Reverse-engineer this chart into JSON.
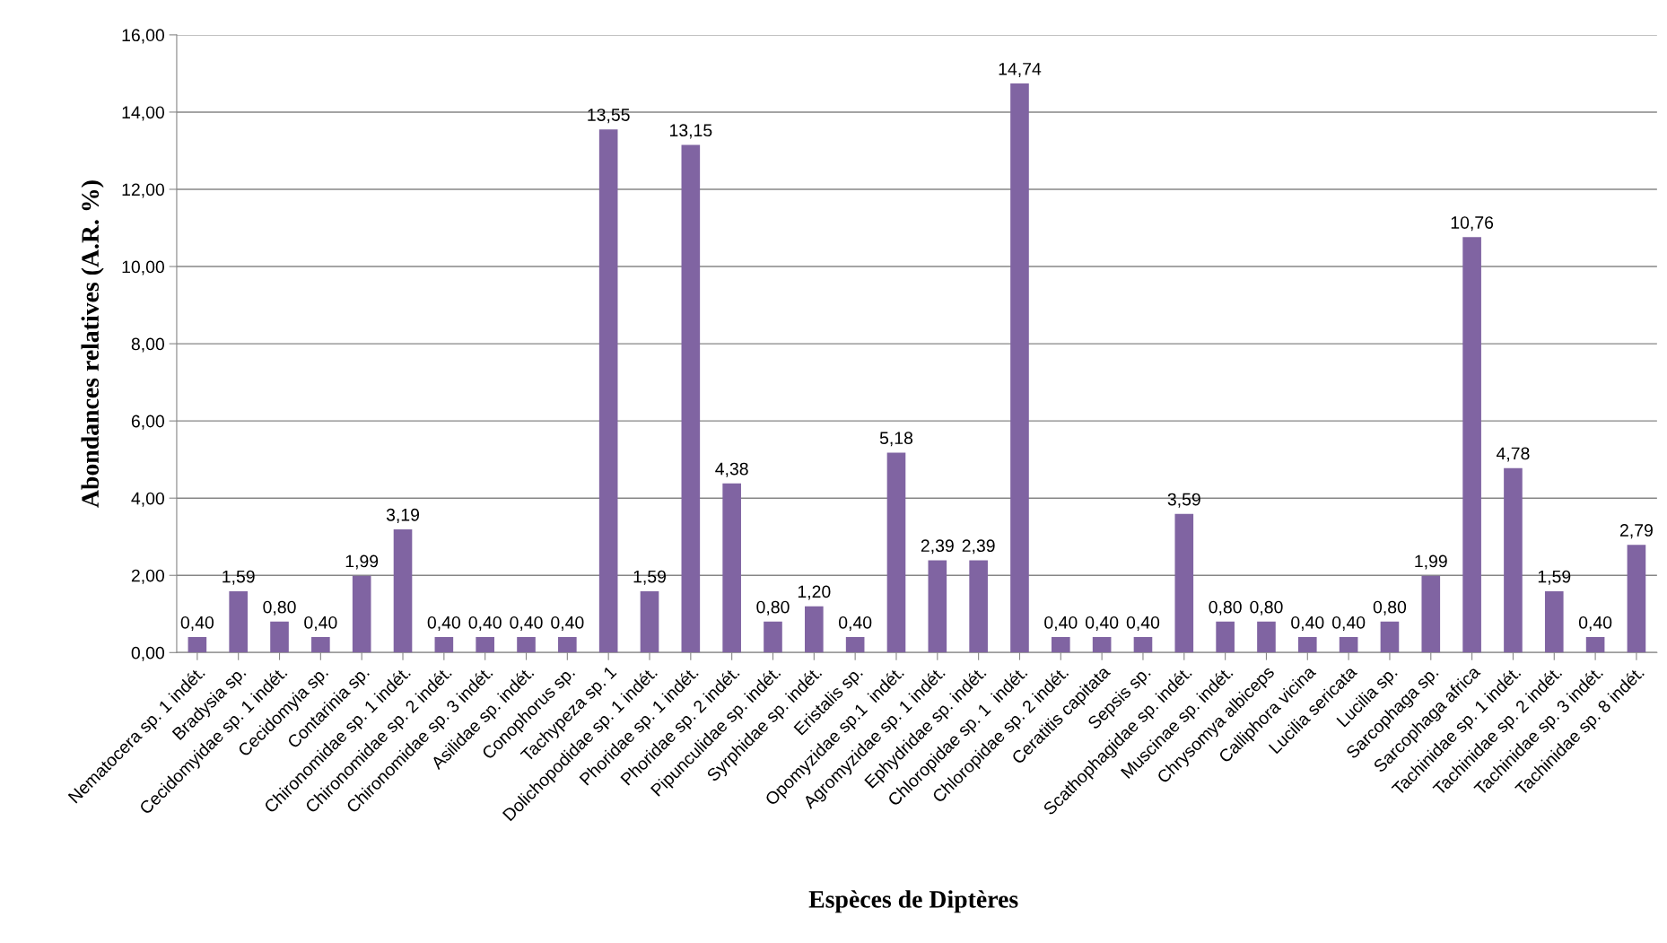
{
  "chart_data": {
    "type": "bar",
    "xlabel": "Espèces de Diptères",
    "ylabel": "Abondances relatives (A.R. %)",
    "categories": [
      "Nematocera sp. 1 indét.",
      "Bradysia sp.",
      "Cecidomyidae sp. 1 indét.",
      "Cecidomyia sp.",
      "Contarinia sp.",
      "Chironomidae sp. 1 indét.",
      "Chironomidae sp. 2 indét.",
      "Chironomidae sp. 3 indét.",
      "Asilidae sp. indét.",
      "Conophorus sp.",
      "Tachypeza sp. 1",
      "Dolichopodidae sp. 1 indét.",
      "Phoridae sp. 1 indét.",
      "Phoridae sp. 2 indét.",
      "Pipunculidae sp. indét.",
      "Syrphidae sp. indét.",
      "Eristalis sp.",
      "Opomyzidae sp.1  indét.",
      "Agromyzidae sp. 1 indét.",
      "Ephydridae sp. indét.",
      "Chloropidae sp. 1  indét.",
      "Chloropidae sp. 2 indét.",
      "Ceratitis capitata",
      "Sepsis sp.",
      "Scathophagidae sp. indét.",
      "Muscinae sp. indét.",
      "Chrysomya albiceps",
      "Calliphora vicina",
      "Lucilia sericata",
      "Lucilia sp.",
      "Sarcophaga sp.",
      "Sarcophaga africa",
      "Tachinidae sp. 1 indét.",
      "Tachinidae sp. 2 indét.",
      "Tachinidae sp. 3 indét.",
      "Tachinidae sp. 8 indét."
    ],
    "values": [
      0.4,
      1.59,
      0.8,
      0.4,
      1.99,
      3.19,
      0.4,
      0.4,
      0.4,
      0.4,
      13.55,
      1.59,
      13.15,
      4.38,
      0.8,
      1.2,
      0.4,
      5.18,
      2.39,
      2.39,
      14.74,
      0.4,
      0.4,
      0.4,
      3.59,
      0.8,
      0.8,
      0.4,
      0.4,
      0.8,
      1.99,
      10.76,
      4.78,
      1.59,
      0.4,
      2.79
    ],
    "value_labels": [
      "0,40",
      "1,59",
      "0,80",
      "0,40",
      "1,99",
      "3,19",
      "0,40",
      "0,40",
      "0,40",
      "0,40",
      "13,55",
      "1,59",
      "13,15",
      "4,38",
      "0,80",
      "1,20",
      "0,40",
      "5,18",
      "2,39",
      "2,39",
      "14,74",
      "0,40",
      "0,40",
      "0,40",
      "3,59",
      "0,80",
      "0,80",
      "0,40",
      "0,40",
      "0,80",
      "1,99",
      "10,76",
      "4,78",
      "1,59",
      "0,40",
      "2,79"
    ],
    "color": "#8064a2",
    "ylim": [
      0,
      16
    ],
    "yticks": [
      {
        "value": 0,
        "label": "0,00"
      },
      {
        "value": 2,
        "label": "2,00"
      },
      {
        "value": 4,
        "label": "4,00"
      },
      {
        "value": 6,
        "label": "6,00"
      },
      {
        "value": 8,
        "label": "8,00"
      },
      {
        "value": 10,
        "label": "10,00"
      },
      {
        "value": 12,
        "label": "12,00"
      },
      {
        "value": 14,
        "label": "14,00"
      },
      {
        "value": 16,
        "label": "16,00"
      }
    ],
    "grid": "y",
    "legend": false
  }
}
